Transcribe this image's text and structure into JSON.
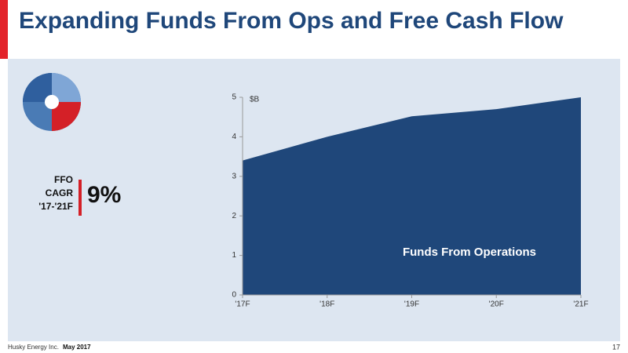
{
  "chart_data": {
    "type": "area",
    "title": "Expanding Funds From Ops and Free Cash Flow",
    "y_label": "$B",
    "annotation": "Funds From Operations",
    "categories": [
      "'17F",
      "'18F",
      "'19F",
      "'20F",
      "'21F"
    ],
    "values": [
      3.4,
      4.0,
      4.52,
      4.7,
      5.0
    ],
    "color": "#1f477a",
    "ylim": [
      0,
      5
    ],
    "yticks": [
      0,
      1,
      2,
      3,
      4,
      5
    ]
  },
  "callout": {
    "label_lines": [
      "FFO",
      "CAGR",
      "'17-'21F"
    ],
    "value": "9%"
  },
  "footer": {
    "company": "Husky Energy Inc.",
    "date": "May 2017",
    "page": "17"
  }
}
